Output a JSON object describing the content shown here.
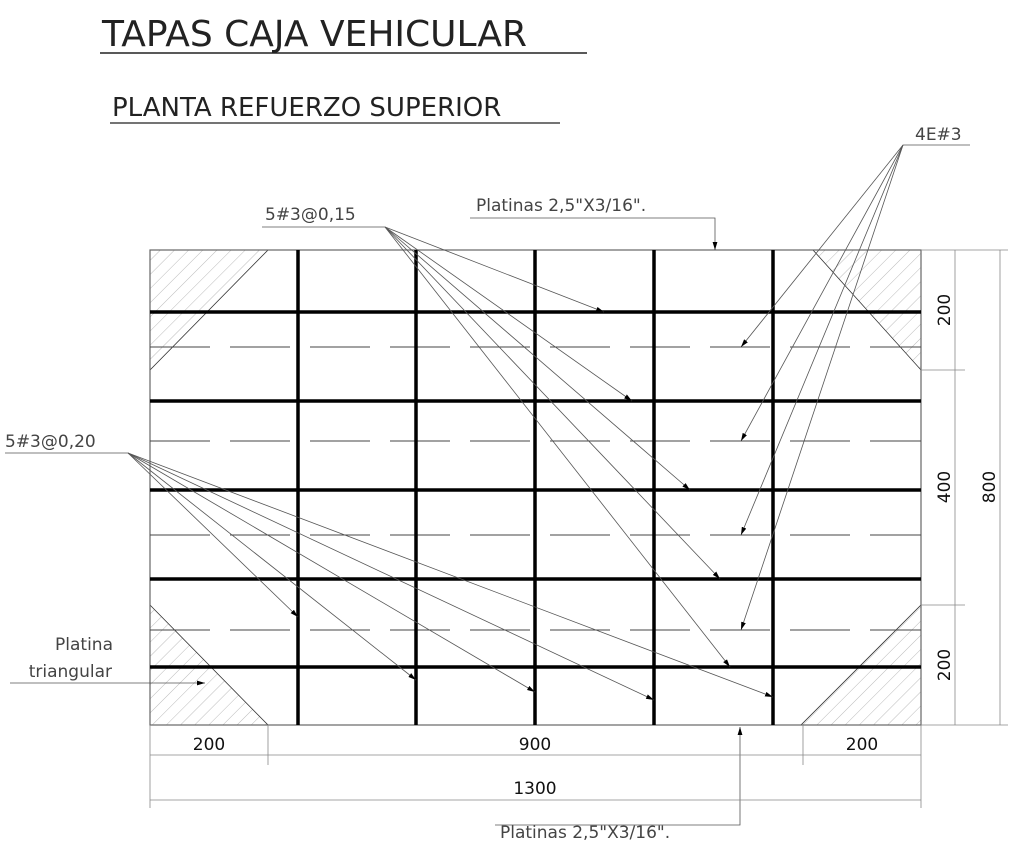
{
  "title": "TAPAS CAJA VEHICULAR",
  "subtitle": "PLANTA REFUERZO SUPERIOR",
  "labels": {
    "bars_015": "5#3@0,15",
    "bars_020": "5#3@0,20",
    "stirrups": "4E#3",
    "platinas_top": "Platinas  2,5\"X3/16\".",
    "platinas_bottom": "Platinas  2,5\"X3/16\".",
    "platina_tri_1": "Platina",
    "platina_tri_2": "triangular"
  },
  "dimensions": {
    "bottom": [
      "200",
      "900",
      "200"
    ],
    "total_width": "1300",
    "right": [
      "200",
      "400",
      "200"
    ],
    "total_height": "800"
  }
}
